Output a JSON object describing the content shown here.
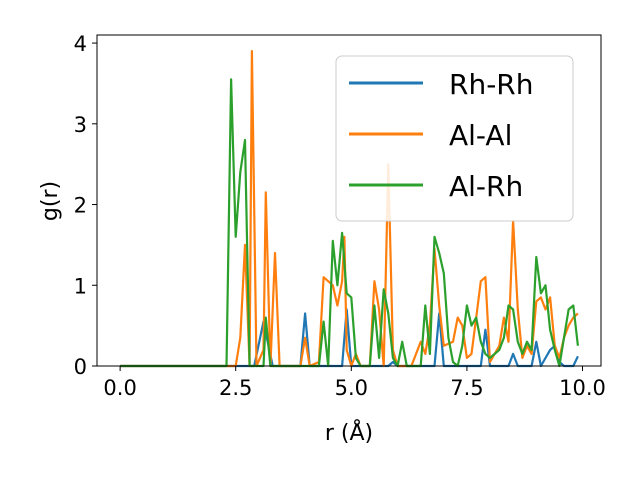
{
  "chart_data": {
    "type": "line",
    "xlabel": "r (Å)",
    "ylabel": "g(r)",
    "xlim": [
      -0.5,
      10.4
    ],
    "ylim": [
      0,
      4.1
    ],
    "xticks": [
      0.0,
      2.5,
      5.0,
      7.5,
      10.0
    ],
    "xtick_labels": [
      "0.0",
      "2.5",
      "5.0",
      "7.5",
      "10.0"
    ],
    "yticks": [
      0,
      1,
      2,
      3,
      4
    ],
    "ytick_labels": [
      "0",
      "1",
      "2",
      "3",
      "4"
    ],
    "grid": false,
    "legend_position": "upper right",
    "series": [
      {
        "name": "Rh-Rh",
        "color": "#1f77b4",
        "points": [
          [
            0.0,
            0
          ],
          [
            2.3,
            0
          ],
          [
            2.9,
            0
          ],
          [
            3.1,
            0.55
          ],
          [
            3.3,
            0
          ],
          [
            3.9,
            0
          ],
          [
            4.0,
            0.65
          ],
          [
            4.1,
            0
          ],
          [
            4.8,
            0
          ],
          [
            4.9,
            0.7
          ],
          [
            5.0,
            0
          ],
          [
            5.8,
            0
          ],
          [
            5.9,
            0.05
          ],
          [
            6.0,
            0
          ],
          [
            6.8,
            0
          ],
          [
            6.9,
            0.65
          ],
          [
            7.0,
            0
          ],
          [
            7.8,
            0
          ],
          [
            7.9,
            0.45
          ],
          [
            8.0,
            0
          ],
          [
            8.4,
            0
          ],
          [
            8.5,
            0.15
          ],
          [
            8.6,
            0
          ],
          [
            8.9,
            0
          ],
          [
            9.0,
            0.3
          ],
          [
            9.1,
            0
          ],
          [
            9.3,
            0.2
          ],
          [
            9.4,
            0.25
          ],
          [
            9.5,
            0.05
          ],
          [
            9.6,
            0
          ],
          [
            9.8,
            0
          ],
          [
            9.9,
            0.12
          ]
        ]
      },
      {
        "name": "Al-Al",
        "color": "#ff7f0e",
        "points": [
          [
            0.0,
            0
          ],
          [
            2.5,
            0
          ],
          [
            2.6,
            0.35
          ],
          [
            2.7,
            1.5
          ],
          [
            2.8,
            0
          ],
          [
            2.85,
            3.9
          ],
          [
            2.95,
            0
          ],
          [
            3.1,
            0.2
          ],
          [
            3.15,
            2.15
          ],
          [
            3.25,
            0
          ],
          [
            3.35,
            1.4
          ],
          [
            3.45,
            0
          ],
          [
            3.9,
            0
          ],
          [
            4.0,
            0.35
          ],
          [
            4.1,
            0
          ],
          [
            4.3,
            0.05
          ],
          [
            4.4,
            1.1
          ],
          [
            4.5,
            1.05
          ],
          [
            4.6,
            1.0
          ],
          [
            4.7,
            0.75
          ],
          [
            4.8,
            1.05
          ],
          [
            4.85,
            1.6
          ],
          [
            4.9,
            0.2
          ],
          [
            5.0,
            0
          ],
          [
            5.1,
            0.15
          ],
          [
            5.2,
            0
          ],
          [
            5.4,
            0
          ],
          [
            5.5,
            1.05
          ],
          [
            5.6,
            0.7
          ],
          [
            5.7,
            0
          ],
          [
            5.8,
            2.5
          ],
          [
            5.9,
            0.2
          ],
          [
            6.0,
            0
          ],
          [
            6.3,
            0
          ],
          [
            6.5,
            0.3
          ],
          [
            6.6,
            0.15
          ],
          [
            6.7,
            0.5
          ],
          [
            6.8,
            1.45
          ],
          [
            6.9,
            0.75
          ],
          [
            7.0,
            0.25
          ],
          [
            7.2,
            0.3
          ],
          [
            7.3,
            0.6
          ],
          [
            7.4,
            0.5
          ],
          [
            7.5,
            0.1
          ],
          [
            7.6,
            0.15
          ],
          [
            7.7,
            0.6
          ],
          [
            7.8,
            1.05
          ],
          [
            7.9,
            1.1
          ],
          [
            8.0,
            0.05
          ],
          [
            8.2,
            0.25
          ],
          [
            8.3,
            0.6
          ],
          [
            8.4,
            0.3
          ],
          [
            8.5,
            1.8
          ],
          [
            8.6,
            0.7
          ],
          [
            8.7,
            0.1
          ],
          [
            8.8,
            0.25
          ],
          [
            8.9,
            0.15
          ],
          [
            9.0,
            0.8
          ],
          [
            9.1,
            0.85
          ],
          [
            9.2,
            0.7
          ],
          [
            9.3,
            0.85
          ],
          [
            9.4,
            0.25
          ],
          [
            9.5,
            0.1
          ],
          [
            9.6,
            0.35
          ],
          [
            9.7,
            0.5
          ],
          [
            9.8,
            0.6
          ],
          [
            9.9,
            0.65
          ]
        ]
      },
      {
        "name": "Al-Rh",
        "color": "#2ca02c",
        "points": [
          [
            0.0,
            0
          ],
          [
            2.3,
            0
          ],
          [
            2.4,
            3.55
          ],
          [
            2.5,
            1.6
          ],
          [
            2.6,
            2.4
          ],
          [
            2.7,
            2.8
          ],
          [
            2.8,
            0
          ],
          [
            3.1,
            0
          ],
          [
            3.15,
            0.6
          ],
          [
            3.25,
            0
          ],
          [
            4.3,
            0
          ],
          [
            4.4,
            0.55
          ],
          [
            4.5,
            0
          ],
          [
            4.6,
            1.55
          ],
          [
            4.7,
            1.0
          ],
          [
            4.8,
            1.65
          ],
          [
            4.9,
            0.9
          ],
          [
            5.0,
            0.85
          ],
          [
            5.1,
            0.1
          ],
          [
            5.2,
            0
          ],
          [
            5.4,
            0
          ],
          [
            5.5,
            0.75
          ],
          [
            5.6,
            0.1
          ],
          [
            5.7,
            0.95
          ],
          [
            5.8,
            0.65
          ],
          [
            5.9,
            0.1
          ],
          [
            6.0,
            0.0
          ],
          [
            6.1,
            0.3
          ],
          [
            6.2,
            0.0
          ],
          [
            6.5,
            0
          ],
          [
            6.6,
            0.75
          ],
          [
            6.7,
            0.15
          ],
          [
            6.8,
            1.6
          ],
          [
            6.9,
            1.4
          ],
          [
            7.0,
            1.15
          ],
          [
            7.1,
            0.35
          ],
          [
            7.2,
            0.05
          ],
          [
            7.3,
            0.0
          ],
          [
            7.4,
            0.25
          ],
          [
            7.5,
            0.75
          ],
          [
            7.6,
            0.5
          ],
          [
            7.7,
            0.6
          ],
          [
            7.8,
            0.3
          ],
          [
            7.9,
            0.15
          ],
          [
            8.0,
            0.1
          ],
          [
            8.1,
            0.15
          ],
          [
            8.2,
            0.2
          ],
          [
            8.3,
            0.35
          ],
          [
            8.4,
            0.75
          ],
          [
            8.5,
            0.7
          ],
          [
            8.6,
            0.3
          ],
          [
            8.7,
            0.15
          ],
          [
            8.8,
            0.3
          ],
          [
            8.9,
            0.2
          ],
          [
            9.0,
            1.35
          ],
          [
            9.1,
            0.9
          ],
          [
            9.2,
            1.0
          ],
          [
            9.3,
            0.45
          ],
          [
            9.4,
            0.2
          ],
          [
            9.5,
            0.0
          ],
          [
            9.6,
            0.35
          ],
          [
            9.7,
            0.7
          ],
          [
            9.8,
            0.75
          ],
          [
            9.9,
            0.25
          ]
        ]
      }
    ]
  }
}
